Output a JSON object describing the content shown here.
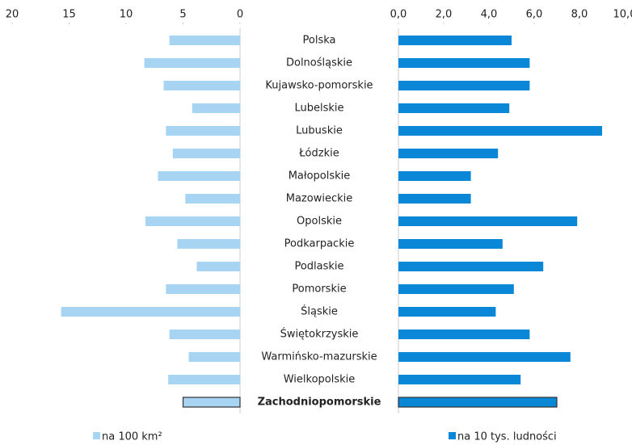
{
  "chart_data": {
    "type": "butterfly",
    "categories": [
      "Polska",
      "Dolnośląskie",
      "Kujawsko-pomorskie",
      "Lubelskie",
      "Lubuskie",
      "Łódzkie",
      "Małopolskie",
      "Mazowieckie",
      "Opolskie",
      "Podkarpackie",
      "Podlaskie",
      "Pomorskie",
      "Śląskie",
      "Świętokrzyskie",
      "Warmińsko-mazurskie",
      "Wielkopolskie",
      "Zachodniopomorskie"
    ],
    "highlight_index": 16,
    "series": [
      {
        "name": "na 100 km²",
        "color": "#a6d4f2",
        "axis": "x",
        "values": [
          6.2,
          8.4,
          6.7,
          4.2,
          6.5,
          5.9,
          7.2,
          4.8,
          8.3,
          5.5,
          3.8,
          6.5,
          15.7,
          6.2,
          4.5,
          6.3,
          5.0
        ]
      },
      {
        "name": "na 10 tys. ludności",
        "color": "#0a87d6",
        "axis": "x2",
        "values": [
          5.0,
          5.8,
          5.8,
          4.9,
          9.0,
          4.4,
          3.2,
          3.2,
          7.9,
          4.6,
          6.4,
          5.1,
          4.3,
          5.8,
          7.6,
          5.4,
          7.0
        ]
      }
    ],
    "xlim": [
      20,
      0
    ],
    "xticks": [
      20,
      15,
      10,
      5,
      0
    ],
    "x2lim": [
      0,
      10
    ],
    "x2ticks": [
      {
        "value": 0,
        "label": "0,0"
      },
      {
        "value": 2,
        "label": "2,0"
      },
      {
        "value": 4,
        "label": "4,0"
      },
      {
        "value": 6,
        "label": "6,0"
      },
      {
        "value": 8,
        "label": "8,0"
      },
      {
        "value": 10,
        "label": "10,0"
      }
    ]
  }
}
